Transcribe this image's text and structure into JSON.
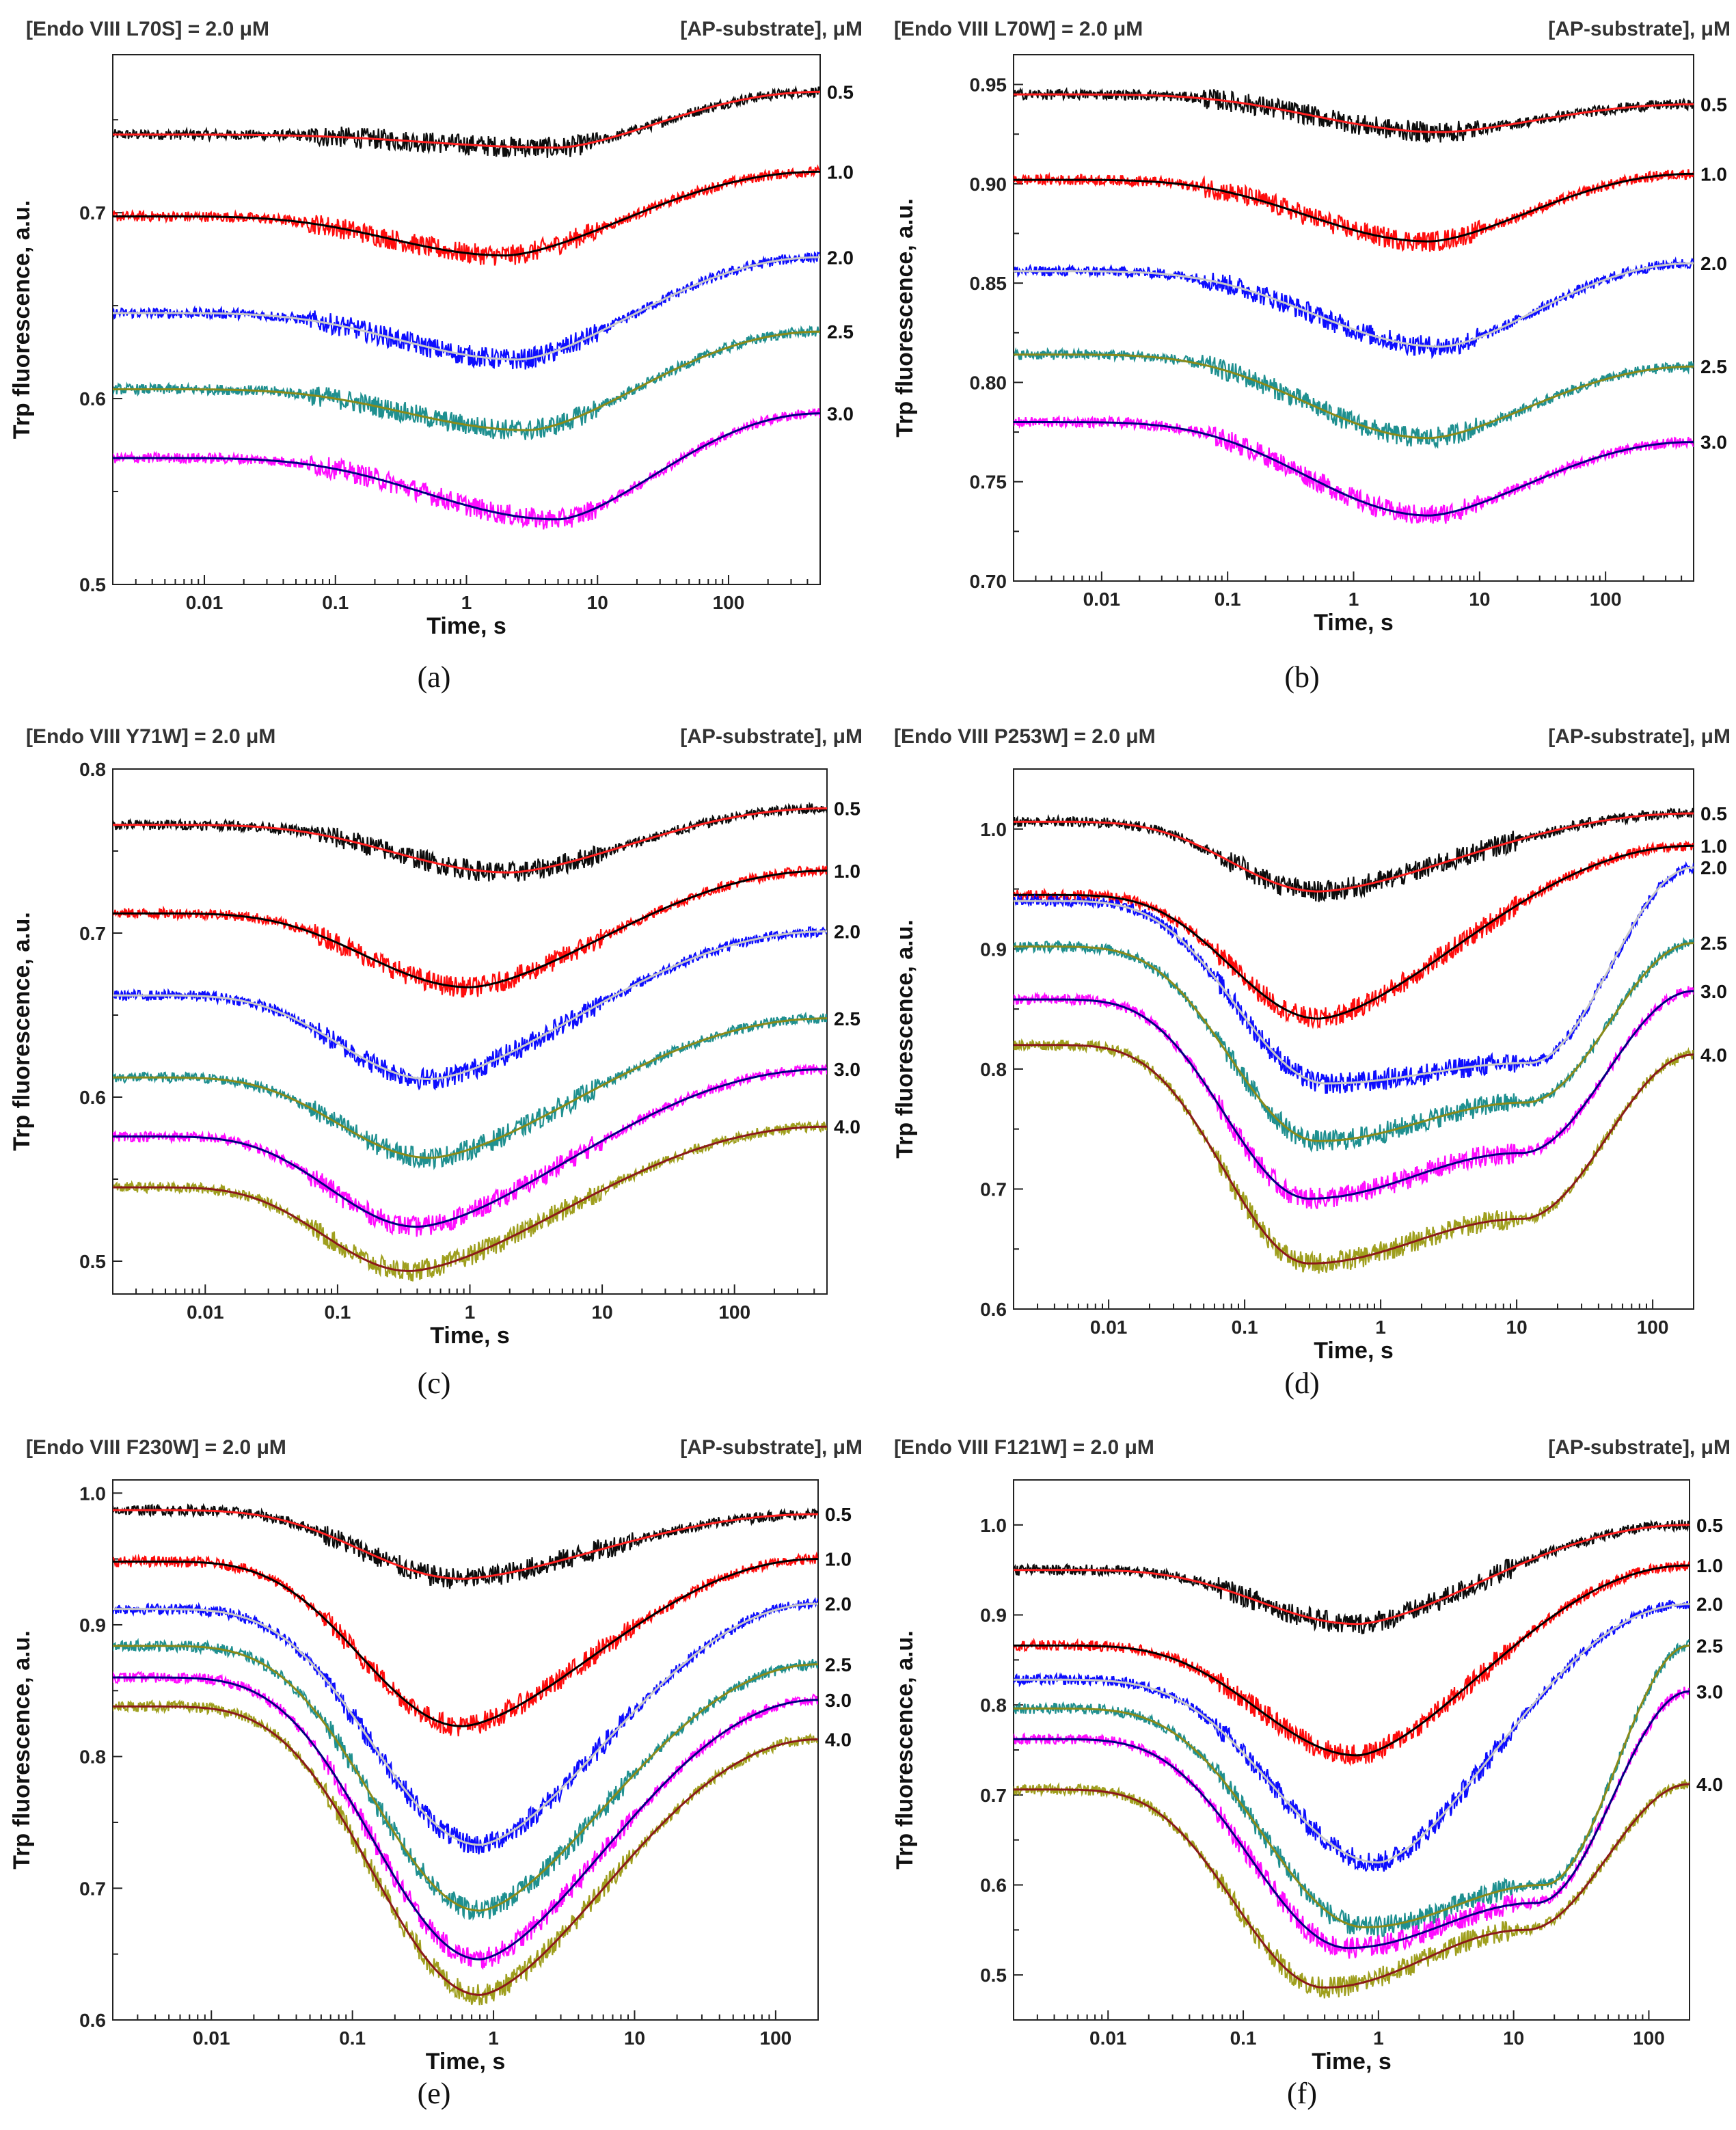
{
  "figure": {
    "colors": {
      "data": [
        "#000000",
        "#ff0000",
        "#0000ff",
        "#138a8a",
        "#ff00ff",
        "#9a9a12"
      ],
      "fit": [
        "#ff2020",
        "#000000",
        "#c8c8c8",
        "#8a8a1a",
        "#000080",
        "#8b1a1a"
      ]
    }
  },
  "chart_data": [
    {
      "type": "line",
      "label": "(a)",
      "title": "[Endo VIII L70S] = 2.0 μM",
      "legend_title": "[AP-substrate], μM",
      "xlabel": "Time, s",
      "ylabel": "Trp fluorescence, a.u.",
      "xscale": "log",
      "xlim": [
        0.002,
        500
      ],
      "ylim": [
        0.5,
        0.785
      ],
      "xticks": [
        0.01,
        0.1,
        1,
        10,
        100
      ],
      "xtick_labels": [
        "0.01",
        "0.1",
        "1",
        "10",
        "100"
      ],
      "yticks": [
        0.5,
        0.6,
        0.7
      ],
      "ytick_labels": [
        "0.5",
        "0.6",
        "0.7"
      ],
      "series": [
        {
          "name": "0.5",
          "start": 0.742,
          "min": 0.735,
          "t_min": 5,
          "end": 0.765
        },
        {
          "name": "1.0",
          "start": 0.698,
          "min": 0.677,
          "t_min": 2,
          "end": 0.722
        },
        {
          "name": "2.0",
          "start": 0.646,
          "min": 0.621,
          "t_min": 2.5,
          "end": 0.676
        },
        {
          "name": "2.5",
          "start": 0.605,
          "min": 0.583,
          "t_min": 3,
          "end": 0.636
        },
        {
          "name": "3.0",
          "start": 0.568,
          "min": 0.535,
          "t_min": 5,
          "end": 0.592
        }
      ]
    },
    {
      "type": "line",
      "label": "(b)",
      "title": "[Endo VIII L70W] = 2.0 μM",
      "legend_title": "[AP-substrate], μM",
      "xlabel": "Time, s",
      "ylabel": "Trp fluorescence, a.u.",
      "xscale": "log",
      "xlim": [
        0.002,
        500
      ],
      "ylim": [
        0.7,
        0.965
      ],
      "xticks": [
        0.01,
        0.1,
        1,
        10,
        100
      ],
      "xtick_labels": [
        "0.01",
        "0.1",
        "1",
        "10",
        "100"
      ],
      "yticks": [
        0.7,
        0.75,
        0.8,
        0.85,
        0.9,
        0.95
      ],
      "ytick_labels": [
        "0.70",
        "0.75",
        "0.80",
        "0.85",
        "0.90",
        "0.95"
      ],
      "series": [
        {
          "name": "0.5",
          "start": 0.945,
          "min": 0.926,
          "t_min": 5,
          "end": 0.94
        },
        {
          "name": "1.0",
          "start": 0.902,
          "min": 0.871,
          "t_min": 4,
          "end": 0.905
        },
        {
          "name": "2.0",
          "start": 0.856,
          "min": 0.818,
          "t_min": 5,
          "end": 0.86
        },
        {
          "name": "2.5",
          "start": 0.814,
          "min": 0.772,
          "t_min": 4,
          "end": 0.808
        },
        {
          "name": "3.0",
          "start": 0.78,
          "min": 0.733,
          "t_min": 4,
          "end": 0.77
        }
      ]
    },
    {
      "type": "line",
      "label": "(c)",
      "title": "[Endo VIII Y71W] = 2.0 μM",
      "legend_title": "[AP-substrate], μM",
      "xlabel": "Time, s",
      "ylabel": "Trp fluorescence, a.u.",
      "xscale": "log",
      "xlim": [
        0.002,
        500
      ],
      "ylim": [
        0.48,
        0.8
      ],
      "xticks": [
        0.01,
        0.1,
        1,
        10,
        100
      ],
      "xtick_labels": [
        "0.01",
        "0.1",
        "1",
        "10",
        "100"
      ],
      "yticks": [
        0.5,
        0.6,
        0.7,
        0.8
      ],
      "ytick_labels": [
        "0.5",
        "0.6",
        "0.7",
        "0.8"
      ],
      "series": [
        {
          "name": "0.5",
          "start": 0.766,
          "min": 0.737,
          "t_min": 2,
          "end": 0.776
        },
        {
          "name": "1.0",
          "start": 0.712,
          "min": 0.667,
          "t_min": 1,
          "end": 0.738
        },
        {
          "name": "2.0",
          "start": 0.662,
          "min": 0.611,
          "t_min": 0.5,
          "end": 0.701
        },
        {
          "name": "2.5",
          "start": 0.612,
          "min": 0.563,
          "t_min": 0.5,
          "end": 0.648
        },
        {
          "name": "3.0",
          "start": 0.576,
          "min": 0.521,
          "t_min": 0.4,
          "end": 0.617
        },
        {
          "name": "4.0",
          "start": 0.545,
          "min": 0.494,
          "t_min": 0.35,
          "end": 0.582
        }
      ]
    },
    {
      "type": "line",
      "label": "(d)",
      "title": "[Endo VIII P253W] = 2.0 μM",
      "legend_title": "[AP-substrate], μM",
      "xlabel": "Time, s",
      "ylabel": "Trp fluorescence, a.u.",
      "xscale": "log",
      "xlim": [
        0.002,
        200
      ],
      "ylim": [
        0.6,
        1.05
      ],
      "xticks": [
        0.01,
        0.1,
        1,
        10,
        100
      ],
      "xtick_labels": [
        "0.01",
        "0.1",
        "1",
        "10",
        "100"
      ],
      "yticks": [
        0.6,
        0.7,
        0.8,
        0.9,
        1.0
      ],
      "ytick_labels": [
        "0.6",
        "0.7",
        "0.8",
        "0.9",
        "1.0"
      ],
      "series": [
        {
          "name": "0.5",
          "start": 1.006,
          "min": 0.948,
          "t_min": 0.35,
          "end": 1.013
        },
        {
          "name": "1.0",
          "start": 0.945,
          "min": 0.842,
          "t_min": 0.35,
          "end": 0.986
        },
        {
          "name": "2.0",
          "start": 0.94,
          "min": 0.788,
          "t_min": 0.4,
          "plateau": 0.805,
          "end": 0.968
        },
        {
          "name": "2.5",
          "start": 0.902,
          "min": 0.74,
          "t_min": 0.35,
          "plateau": 0.772,
          "end": 0.905
        },
        {
          "name": "3.0",
          "start": 0.858,
          "min": 0.692,
          "t_min": 0.3,
          "plateau": 0.73,
          "end": 0.865
        },
        {
          "name": "4.0",
          "start": 0.82,
          "min": 0.638,
          "t_min": 0.3,
          "plateau": 0.675,
          "end": 0.812
        }
      ]
    },
    {
      "type": "line",
      "label": "(e)",
      "title": "[Endo VIII F230W] = 2.0 μM",
      "legend_title": "[AP-substrate], μM",
      "xlabel": "Time, s",
      "ylabel": "Trp fluorescence, a.u.",
      "xscale": "log",
      "xlim": [
        0.002,
        200
      ],
      "ylim": [
        0.6,
        1.01
      ],
      "xticks": [
        0.01,
        0.1,
        1,
        10,
        100
      ],
      "xtick_labels": [
        "0.01",
        "0.1",
        "1",
        "10",
        "100"
      ],
      "yticks": [
        0.6,
        0.7,
        0.8,
        0.9,
        1.0
      ],
      "ytick_labels": [
        "0.6",
        "0.7",
        "0.8",
        "0.9",
        "1.0"
      ],
      "series": [
        {
          "name": "0.5",
          "start": 0.987,
          "min": 0.935,
          "t_min": 0.6,
          "end": 0.984
        },
        {
          "name": "1.0",
          "start": 0.948,
          "min": 0.823,
          "t_min": 0.6,
          "end": 0.95
        },
        {
          "name": "2.0",
          "start": 0.912,
          "min": 0.733,
          "t_min": 0.8,
          "end": 0.916
        },
        {
          "name": "2.5",
          "start": 0.884,
          "min": 0.683,
          "t_min": 0.8,
          "end": 0.87
        },
        {
          "name": "3.0",
          "start": 0.86,
          "min": 0.646,
          "t_min": 0.8,
          "end": 0.843
        },
        {
          "name": "4.0",
          "start": 0.838,
          "min": 0.619,
          "t_min": 0.8,
          "end": 0.813
        }
      ]
    },
    {
      "type": "line",
      "label": "(f)",
      "title": "[Endo VIII F121W] = 2.0 μM",
      "legend_title": "[AP-substrate], μM",
      "xlabel": "Time, s",
      "ylabel": "Trp fluorescence, a.u.",
      "xscale": "log",
      "xlim": [
        0.002,
        200
      ],
      "ylim": [
        0.45,
        1.05
      ],
      "xticks": [
        0.01,
        0.1,
        1,
        10,
        100
      ],
      "xtick_labels": [
        "0.01",
        "0.1",
        "1",
        "10",
        "100"
      ],
      "yticks": [
        0.5,
        0.6,
        0.7,
        0.8,
        0.9,
        1.0
      ],
      "ytick_labels": [
        "0.5",
        "0.6",
        "0.7",
        "0.8",
        "0.9",
        "1.0"
      ],
      "series": [
        {
          "name": "0.5",
          "start": 0.95,
          "min": 0.89,
          "t_min": 0.7,
          "end": 1.0
        },
        {
          "name": "1.0",
          "start": 0.866,
          "min": 0.744,
          "t_min": 0.7,
          "end": 0.955
        },
        {
          "name": "2.0",
          "start": 0.828,
          "min": 0.625,
          "t_min": 1.0,
          "end": 0.912
        },
        {
          "name": "2.5",
          "start": 0.796,
          "min": 0.553,
          "t_min": 0.8,
          "plateau": 0.6,
          "end": 0.866
        },
        {
          "name": "3.0",
          "start": 0.762,
          "min": 0.53,
          "t_min": 0.6,
          "plateau": 0.58,
          "end": 0.815
        },
        {
          "name": "4.0",
          "start": 0.706,
          "min": 0.486,
          "t_min": 0.4,
          "plateau": 0.55,
          "end": 0.712
        }
      ]
    }
  ]
}
